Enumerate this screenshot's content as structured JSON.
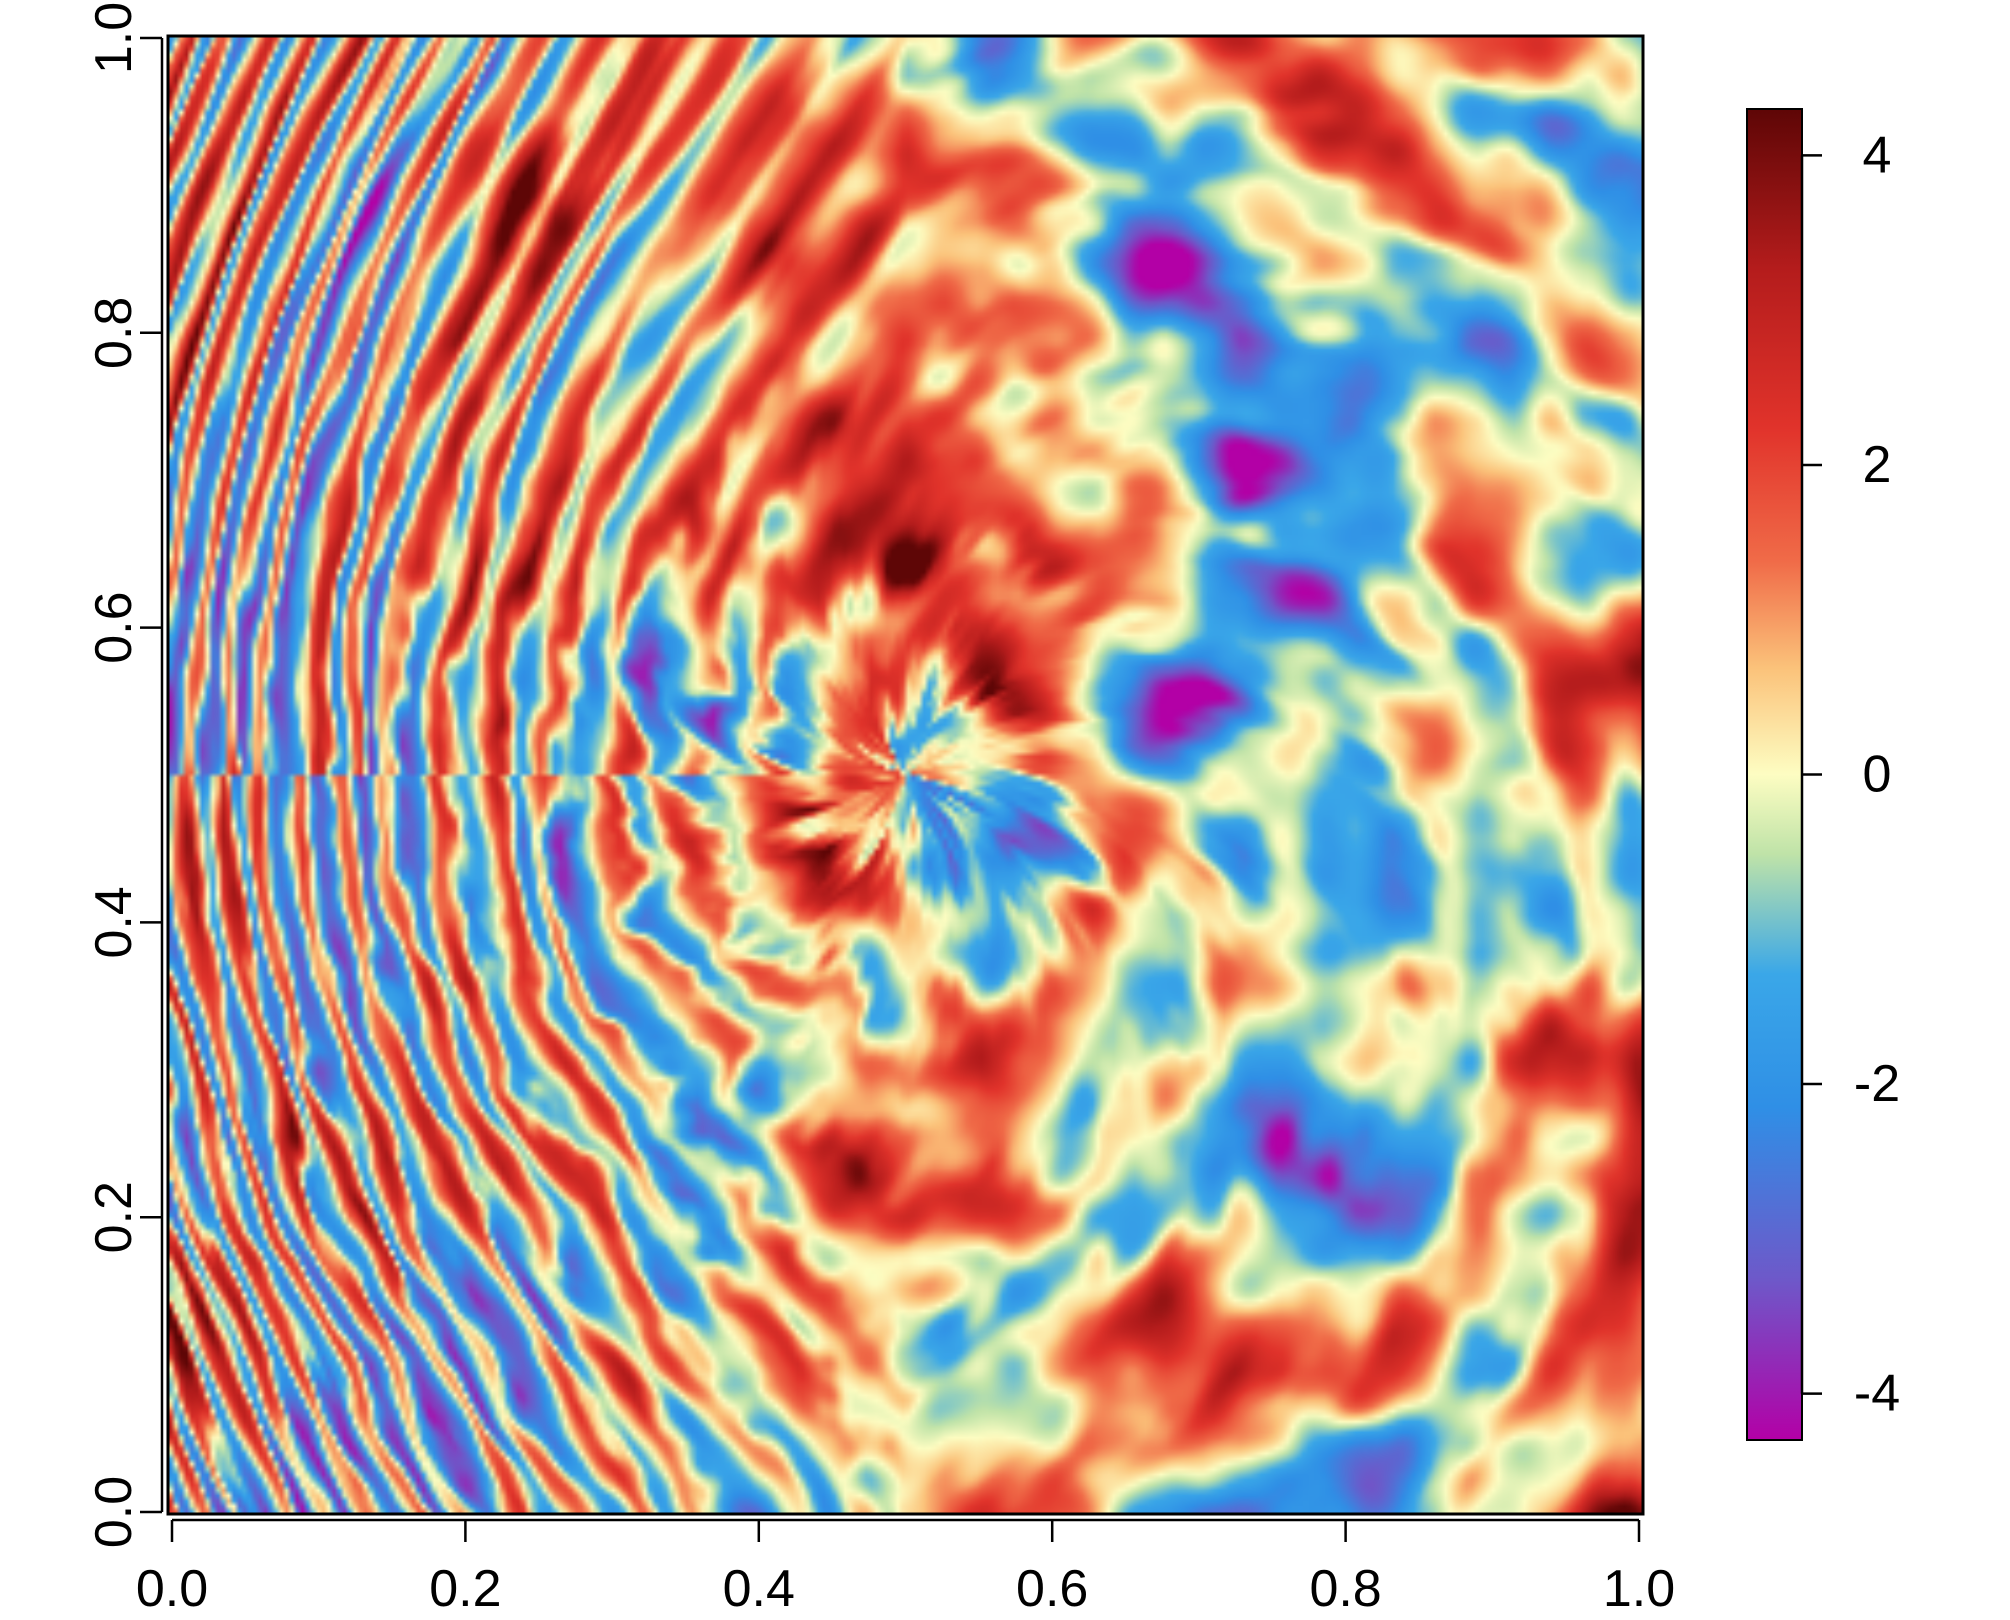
{
  "chart_data": {
    "type": "heatmap",
    "title": "",
    "xlabel": "",
    "ylabel": "",
    "xlim": [
      0.0,
      1.0
    ],
    "ylim": [
      0.0,
      1.0
    ],
    "x_ticks": [
      "0.0",
      "0.2",
      "0.4",
      "0.6",
      "0.8",
      "1.0"
    ],
    "y_ticks": [
      "0.0",
      "0.2",
      "0.4",
      "0.6",
      "0.8",
      "1.0"
    ],
    "grid": false,
    "pattern": "spiral random field centred near (0.5, 0.5), radial oscillations strongest near left edge, smoother toward right",
    "center": [
      0.5,
      0.5
    ],
    "value_range": [
      -4.3,
      4.3
    ],
    "colorbar": {
      "position": "right",
      "ticks": [
        "4",
        "2",
        "0",
        "-2",
        "-4"
      ],
      "tick_values": [
        4,
        2,
        0,
        -2,
        -4
      ],
      "colors": [
        "#b300a6",
        "#6e58c9",
        "#2f8fe6",
        "#3aa7e8",
        "#bfe3a8",
        "#fdfdc2",
        "#fbc27a",
        "#f06b48",
        "#e1332b",
        "#b41c1c",
        "#5e0606"
      ]
    }
  }
}
